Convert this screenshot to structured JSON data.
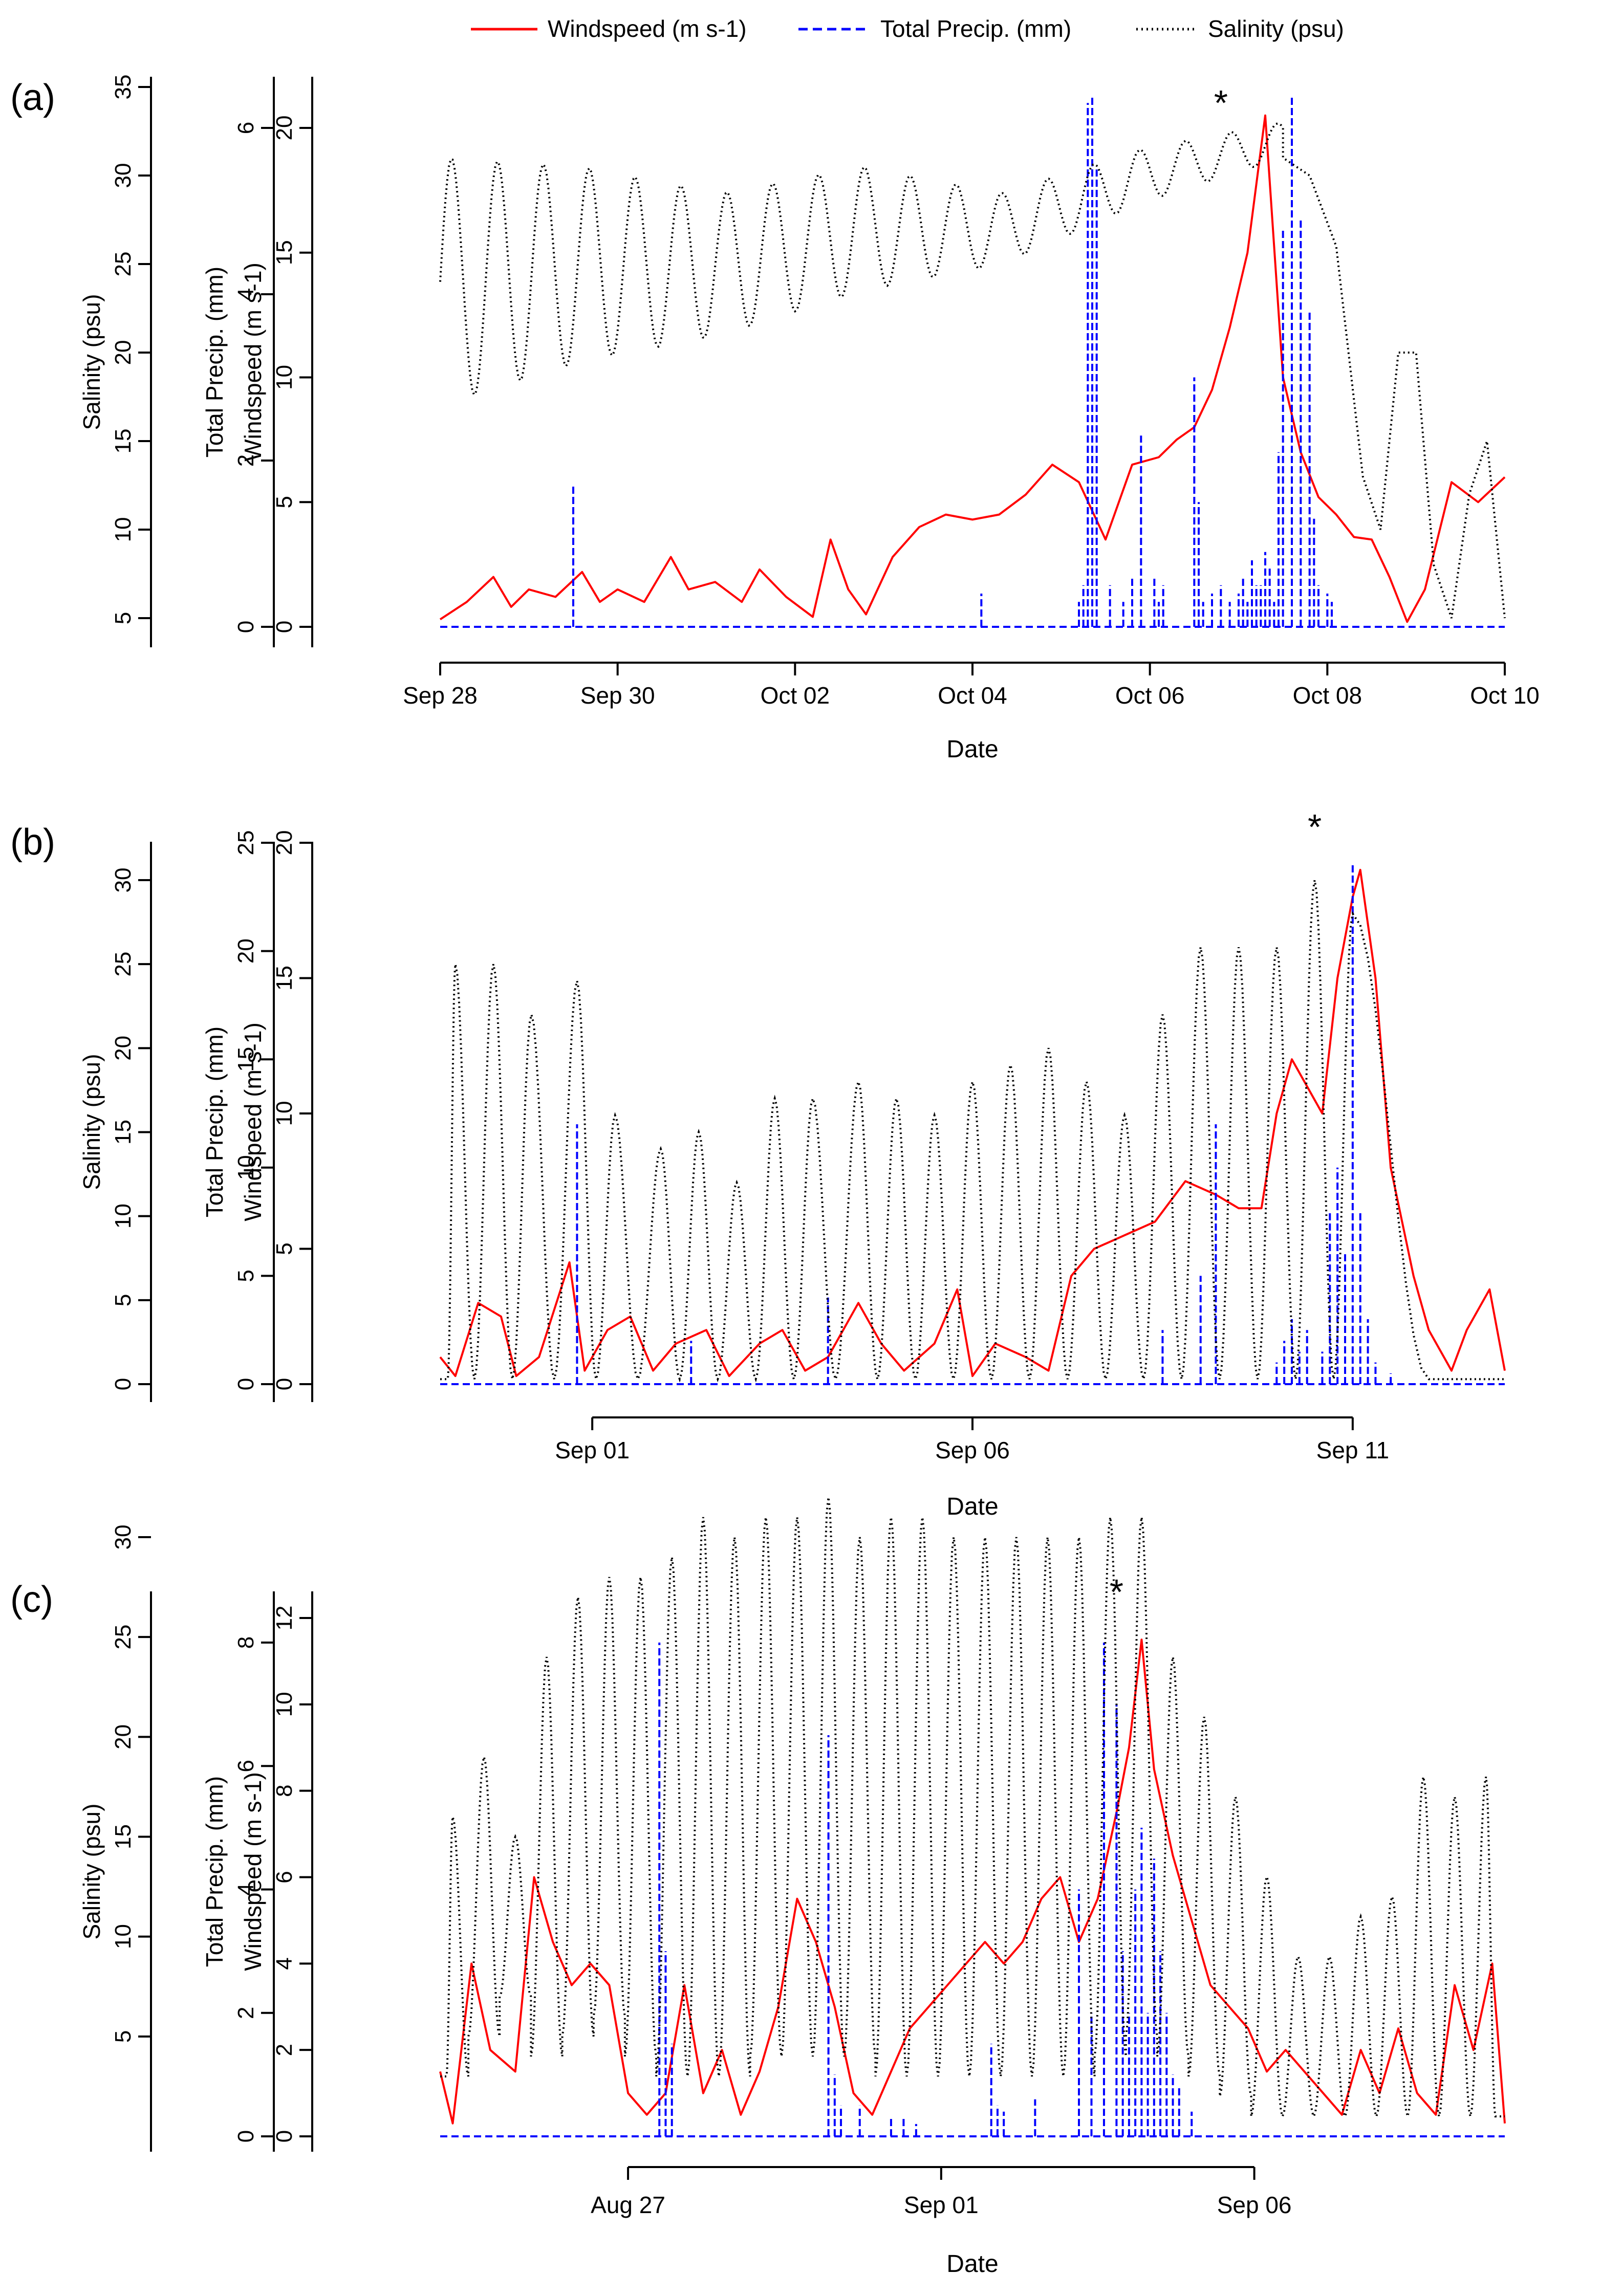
{
  "legend": {
    "items": [
      {
        "label": "Windspeed (m s-1)",
        "color": "#ff0000",
        "dash": "solid"
      },
      {
        "label": "Total Precip. (mm)",
        "color": "#0000ff",
        "dash": "dashed"
      },
      {
        "label": "Salinity (psu)",
        "color": "#000000",
        "dash": "dotted"
      }
    ]
  },
  "colors": {
    "wind": "#ff0000",
    "precip": "#0000ff",
    "salinity": "#000000"
  },
  "chart_data": [
    {
      "panel_label": "(a)",
      "type": "line",
      "xlabel": "Date",
      "x_unit": "days since start of record",
      "x_range": [
        0,
        12
      ],
      "x_ticks": [
        {
          "x": 0,
          "label": "Sep 28"
        },
        {
          "x": 2,
          "label": "Sep 30"
        },
        {
          "x": 4,
          "label": "Oct 02"
        },
        {
          "x": 6,
          "label": "Oct 04"
        },
        {
          "x": 8,
          "label": "Oct 06"
        },
        {
          "x": 10,
          "label": "Oct 08"
        },
        {
          "x": 12,
          "label": "Oct 10"
        }
      ],
      "axes": {
        "wind": {
          "label": "Windspeed (m s-1)",
          "range": [
            0,
            20
          ],
          "ticks": [
            0,
            5,
            10,
            15,
            20
          ]
        },
        "precip": {
          "label": "Total Precip. (mm)",
          "range": [
            0,
            6
          ],
          "ticks": [
            0,
            2,
            4,
            6
          ]
        },
        "salinity": {
          "label": "Salinity (psu)",
          "range": [
            5,
            35
          ],
          "ticks": [
            5,
            10,
            15,
            20,
            25,
            30,
            35
          ]
        }
      },
      "annotation": {
        "text": "*",
        "x": 8.8
      },
      "series": [
        {
          "name": "Windspeed (m s-1)",
          "axis": "wind",
          "x": [
            0,
            0.3,
            0.6,
            0.8,
            1.0,
            1.3,
            1.6,
            1.8,
            2.0,
            2.3,
            2.6,
            2.8,
            3.1,
            3.4,
            3.6,
            3.9,
            4.2,
            4.4,
            4.6,
            4.8,
            5.1,
            5.4,
            5.7,
            6.0,
            6.3,
            6.6,
            6.9,
            7.2,
            7.5,
            7.8,
            8.1,
            8.3,
            8.5,
            8.7,
            8.9,
            9.1,
            9.3,
            9.5,
            9.7,
            9.9,
            10.1,
            10.3,
            10.5,
            10.7,
            10.9,
            11.1,
            11.4,
            11.7,
            12.0
          ],
          "y": [
            0.3,
            1,
            2,
            0.8,
            1.5,
            1.2,
            2.2,
            1,
            1.5,
            1,
            2.8,
            1.5,
            1.8,
            1,
            2.3,
            1.2,
            0.4,
            3.5,
            1.5,
            0.5,
            2.8,
            4,
            4.5,
            4.3,
            4.5,
            5.3,
            6.5,
            5.8,
            3.5,
            6.5,
            6.8,
            7.5,
            8,
            9.5,
            12,
            15,
            20.5,
            10,
            7,
            5.2,
            4.5,
            3.6,
            3.5,
            2,
            0.2,
            1.5,
            5.8,
            5,
            6
          ]
        },
        {
          "name": "Total Precip. (mm)",
          "axis": "precip",
          "x": [
            1.5,
            6.1,
            7.2,
            7.25,
            7.3,
            7.35,
            7.4,
            7.55,
            7.7,
            7.8,
            7.9,
            8.05,
            8.1,
            8.15,
            8.5,
            8.55,
            8.6,
            8.7,
            8.8,
            8.9,
            9.0,
            9.05,
            9.1,
            9.15,
            9.2,
            9.25,
            9.3,
            9.35,
            9.4,
            9.45,
            9.5,
            9.6,
            9.7,
            9.8,
            9.85,
            9.9,
            10.0,
            10.05
          ],
          "y": [
            1.7,
            0.4,
            0.3,
            0.5,
            6.3,
            6.4,
            5.5,
            0.5,
            0.3,
            0.6,
            2.3,
            0.6,
            0.3,
            0.5,
            3,
            1.5,
            0.3,
            0.4,
            0.5,
            0.3,
            0.4,
            0.6,
            0.3,
            0.8,
            0.5,
            0.5,
            0.9,
            0.7,
            0.3,
            2.1,
            4.8,
            6.4,
            4.9,
            3.8,
            1.3,
            0.5,
            0.4,
            0.3
          ]
        },
        {
          "name": "Salinity (psu)",
          "axis": "salinity",
          "osc_start": [
            24,
            25,
            25,
            27,
            27,
            30,
            32
          ],
          "osc_amp": [
            7,
            5.5,
            4,
            3.5,
            2,
            1.5,
            1
          ],
          "tail": {
            "from_day": 9.5,
            "x": [
              9.5,
              9.8,
              10.1,
              10.4,
              10.6,
              10.8,
              11.0,
              11.2,
              11.4,
              11.6,
              11.8,
              12.0
            ],
            "y": [
              31,
              30,
              26,
              13,
              10,
              20,
              20,
              8,
              5,
              12,
              15,
              5
            ]
          }
        }
      ]
    },
    {
      "panel_label": "(b)",
      "type": "line",
      "xlabel": "Date",
      "x_unit": "days since Sep 01",
      "x_range": [
        -2,
        12
      ],
      "x_ticks": [
        {
          "x": 0,
          "label": "Sep 01"
        },
        {
          "x": 5,
          "label": "Sep 06"
        },
        {
          "x": 10,
          "label": "Sep 11"
        }
      ],
      "axes": {
        "wind": {
          "label": "Windspeed (m s-1)",
          "range": [
            0,
            20
          ],
          "ticks": [
            0,
            5,
            10,
            15,
            20
          ]
        },
        "precip": {
          "label": "Total Precip. (mm)",
          "range": [
            0,
            25
          ],
          "ticks": [
            0,
            5,
            10,
            15,
            20,
            25
          ]
        },
        "salinity": {
          "label": "Salinity (psu)",
          "range": [
            0,
            30
          ],
          "ticks": [
            0,
            5,
            10,
            15,
            20,
            25,
            30
          ]
        }
      },
      "annotation": {
        "text": "*",
        "x": 9.5
      },
      "series": [
        {
          "name": "Windspeed (m s-1)",
          "axis": "wind",
          "x": [
            -2,
            -1.8,
            -1.5,
            -1.2,
            -1.0,
            -0.7,
            -0.3,
            -0.1,
            0.2,
            0.5,
            0.8,
            1.1,
            1.5,
            1.8,
            2.2,
            2.5,
            2.8,
            3.1,
            3.5,
            3.8,
            4.1,
            4.5,
            4.8,
            5.0,
            5.3,
            5.7,
            6.0,
            6.3,
            6.6,
            7.0,
            7.4,
            7.8,
            8.2,
            8.5,
            8.8,
            9.0,
            9.2,
            9.4,
            9.6,
            9.8,
            10.0,
            10.1,
            10.3,
            10.5,
            10.8,
            11.0,
            11.3,
            11.5,
            11.8,
            12.0
          ],
          "y": [
            1,
            0.3,
            3,
            2.5,
            0.3,
            1,
            4.5,
            0.5,
            2,
            2.5,
            0.5,
            1.5,
            2,
            0.3,
            1.5,
            2,
            0.5,
            1,
            3,
            1.5,
            0.5,
            1.5,
            3.5,
            0.3,
            1.5,
            1,
            0.5,
            4,
            5,
            5.5,
            6,
            7.5,
            7,
            6.5,
            6.5,
            10,
            12,
            11,
            10,
            15,
            18,
            19,
            15,
            8,
            4,
            2,
            0.5,
            2,
            3.5,
            0.5
          ]
        },
        {
          "name": "Total Precip. (mm)",
          "axis": "precip",
          "x": [
            -0.2,
            1.3,
            3.1,
            7.5,
            8.0,
            8.2,
            9.0,
            9.1,
            9.2,
            9.3,
            9.4,
            9.6,
            9.7,
            9.8,
            9.9,
            10.0,
            10.1,
            10.2,
            10.3,
            10.5
          ],
          "y": [
            12,
            2,
            4,
            2.5,
            5,
            12,
            1,
            2,
            3,
            1.5,
            2.5,
            1.5,
            8,
            10,
            6,
            24,
            8,
            3,
            1,
            0.5
          ]
        },
        {
          "name": "Salinity (psu)",
          "axis": "salinity",
          "peak_x": [
            -1.8,
            -1.3,
            -0.8,
            -0.2,
            0.3,
            0.9,
            1.4,
            1.9,
            2.4,
            2.9,
            3.5,
            4.0,
            4.5,
            5.0,
            5.5,
            6.0,
            6.5,
            7.0,
            7.5,
            8.0,
            8.5,
            9.0,
            9.5,
            10.0
          ],
          "peak_y": [
            25,
            25,
            22,
            24,
            16,
            14,
            15,
            12,
            17,
            17,
            18,
            17,
            16,
            18,
            19,
            20,
            18,
            16,
            22,
            26,
            26,
            26,
            30,
            28
          ]
        }
      ]
    },
    {
      "panel_label": "(c)",
      "type": "line",
      "xlabel": "Date",
      "x_unit": "days since Aug 27",
      "x_range": [
        -3,
        14
      ],
      "x_ticks": [
        {
          "x": 0,
          "label": "Aug 27"
        },
        {
          "x": 5,
          "label": "Sep 01"
        },
        {
          "x": 10,
          "label": "Sep 06"
        }
      ],
      "axes": {
        "wind": {
          "label": "Windspeed (m s-1)",
          "range": [
            0,
            12
          ],
          "ticks": [
            0,
            2,
            4,
            6,
            8,
            10,
            12
          ]
        },
        "precip": {
          "label": "Total Precip. (mm)",
          "range": [
            0,
            8
          ],
          "ticks": [
            0,
            2,
            4,
            6,
            8
          ]
        },
        "salinity": {
          "label": "Salinity (psu)",
          "range": [
            0,
            30
          ],
          "ticks": [
            5,
            10,
            15,
            20,
            25,
            30
          ]
        }
      },
      "annotation": {
        "text": "*",
        "x": 7.8
      },
      "series": [
        {
          "name": "Windspeed (m s-1)",
          "axis": "wind",
          "x": [
            -3,
            -2.8,
            -2.5,
            -2.2,
            -1.8,
            -1.5,
            -1.2,
            -0.9,
            -0.6,
            -0.3,
            0.0,
            0.3,
            0.6,
            0.9,
            1.2,
            1.5,
            1.8,
            2.1,
            2.4,
            2.7,
            3.0,
            3.3,
            3.6,
            3.9,
            4.2,
            4.5,
            4.8,
            5.1,
            5.4,
            5.7,
            6.0,
            6.3,
            6.6,
            6.9,
            7.2,
            7.5,
            7.8,
            8.0,
            8.2,
            8.4,
            8.7,
            9.0,
            9.3,
            9.6,
            9.9,
            10.2,
            10.5,
            10.8,
            11.1,
            11.4,
            11.7,
            12.0,
            12.3,
            12.6,
            12.9,
            13.2,
            13.5,
            13.8,
            14.0
          ],
          "y": [
            1.5,
            0.3,
            4,
            2,
            1.5,
            6,
            4.5,
            3.5,
            4,
            3.5,
            1,
            0.5,
            1,
            3.5,
            1,
            2,
            0.5,
            1.5,
            3,
            5.5,
            4.5,
            3,
            1,
            0.5,
            1.5,
            2.5,
            3,
            3.5,
            4,
            4.5,
            4,
            4.5,
            5.5,
            6,
            4.5,
            5.5,
            7.5,
            9,
            11.5,
            8.5,
            6.5,
            5,
            3.5,
            3,
            2.5,
            1.5,
            2,
            1.5,
            1,
            0.5,
            2,
            1,
            2.5,
            1,
            0.5,
            3.5,
            2,
            4,
            0.3
          ]
        },
        {
          "name": "Total Precip. (mm)",
          "axis": "precip",
          "x": [
            0.5,
            0.6,
            0.7,
            3.2,
            3.3,
            3.4,
            3.7,
            4.2,
            4.4,
            4.6,
            5.8,
            5.9,
            6.0,
            6.5,
            7.2,
            7.4,
            7.6,
            7.8,
            7.9,
            8.0,
            8.1,
            8.2,
            8.3,
            8.4,
            8.5,
            8.6,
            8.7,
            8.8,
            9.0
          ],
          "y": [
            8,
            3,
            1.5,
            6.5,
            1,
            0.5,
            0.5,
            0.3,
            0.3,
            0.2,
            1.5,
            0.5,
            0.4,
            0.6,
            4,
            2,
            8,
            7,
            3,
            2,
            4,
            5,
            2,
            4.5,
            3,
            2,
            1,
            0.8,
            0.4
          ]
        },
        {
          "name": "Salinity (psu)",
          "axis": "salinity",
          "peak_x": [
            -2.8,
            -2.3,
            -1.8,
            -1.3,
            -0.8,
            -0.3,
            0.2,
            0.7,
            1.2,
            1.7,
            2.2,
            2.7,
            3.2,
            3.7,
            4.2,
            4.7,
            5.2,
            5.7,
            6.2,
            6.7,
            7.2,
            7.7,
            8.2,
            8.7,
            9.2,
            9.7,
            10.2,
            10.7,
            11.2,
            11.7,
            12.2,
            12.7,
            13.2,
            13.7
          ],
          "peak_y": [
            16,
            19,
            15,
            24,
            27,
            28,
            28,
            29,
            31,
            30,
            31,
            31,
            32,
            30,
            31,
            31,
            30,
            30,
            30,
            30,
            30,
            31,
            31,
            24,
            21,
            17,
            13,
            9,
            9,
            11,
            12,
            18,
            17,
            18
          ],
          "trough_y": [
            3,
            5,
            7,
            4,
            5,
            6,
            4,
            3,
            3,
            3,
            4,
            4,
            4,
            4,
            3,
            3,
            3,
            3,
            3,
            3,
            3,
            4,
            5,
            4,
            3,
            2,
            1,
            1,
            1,
            1,
            1,
            1,
            1,
            1
          ]
        }
      ]
    }
  ]
}
